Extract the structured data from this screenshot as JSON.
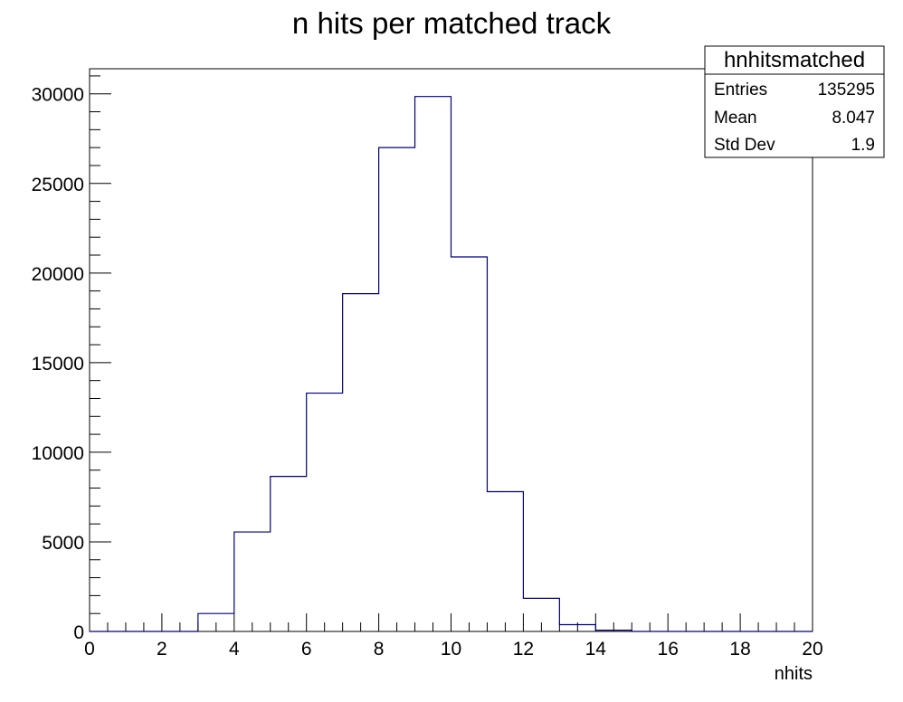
{
  "chart_data": {
    "type": "bar",
    "title": "n hits per matched track",
    "xlabel": "nhits",
    "ylabel": "",
    "xlim": [
      0,
      20
    ],
    "ylim": [
      0,
      31400
    ],
    "x_ticks": [
      0,
      2,
      4,
      6,
      8,
      10,
      12,
      14,
      16,
      18,
      20
    ],
    "y_ticks": [
      0,
      5000,
      10000,
      15000,
      20000,
      25000,
      30000
    ],
    "grid": false,
    "series": [
      {
        "bins": [
          {
            "low": 3,
            "high": 4,
            "value": 1000
          },
          {
            "low": 4,
            "high": 5,
            "value": 5550
          },
          {
            "low": 5,
            "high": 6,
            "value": 8650
          },
          {
            "low": 6,
            "high": 7,
            "value": 13300
          },
          {
            "low": 7,
            "high": 8,
            "value": 18850
          },
          {
            "low": 8,
            "high": 9,
            "value": 27000
          },
          {
            "low": 9,
            "high": 10,
            "value": 29850
          },
          {
            "low": 10,
            "high": 11,
            "value": 20900
          },
          {
            "low": 11,
            "high": 12,
            "value": 7800
          },
          {
            "low": 12,
            "high": 13,
            "value": 1850
          },
          {
            "low": 13,
            "high": 14,
            "value": 380
          },
          {
            "low": 14,
            "high": 15,
            "value": 70
          }
        ]
      }
    ],
    "stats_box": {
      "name": "hnhitsmatched",
      "rows": [
        {
          "label": "Entries",
          "value": "135295"
        },
        {
          "label": "Mean",
          "value": "8.047"
        },
        {
          "label": "Std Dev",
          "value": "1.9"
        }
      ],
      "placement": "top-right"
    },
    "line_color": "#000080"
  }
}
